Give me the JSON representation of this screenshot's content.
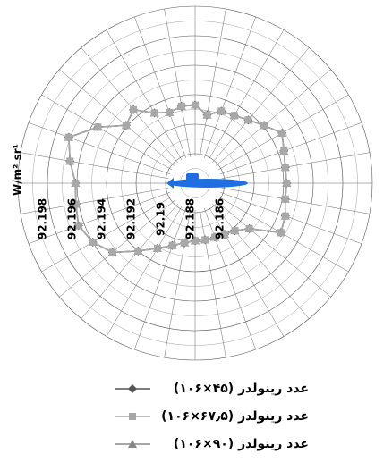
{
  "chart_data": {
    "type": "polar",
    "y_label": "W/m² sr¹",
    "theta": [
      0,
      10,
      20,
      30,
      40,
      50,
      60,
      70,
      80,
      90,
      100,
      110,
      120,
      130,
      140,
      150,
      160,
      170,
      180,
      190,
      200,
      210,
      220,
      230,
      240,
      250,
      260,
      270,
      280,
      290,
      300,
      310,
      320,
      330,
      340,
      350
    ],
    "rlim": [
      92.186,
      92.198
    ],
    "rticks": [
      92.186,
      92.188,
      92.19,
      92.192,
      92.194,
      92.196,
      92.198
    ],
    "series": [
      {
        "name": "عدد رینولدز (۴۵×۱۰۶)",
        "color": "#555555",
        "marker": "diamond",
        "values": [
          92.1922,
          92.1922,
          92.1924,
          92.1928,
          92.1921,
          92.1916,
          92.1913,
          92.1912,
          92.1907,
          92.1913,
          92.1913,
          92.1911,
          92.1915,
          92.1925,
          92.1921,
          92.1936,
          92.1951,
          92.1946,
          92.1941,
          92.1942,
          92.1944,
          92.194,
          92.1933,
          92.192,
          92.1911,
          92.1905,
          92.1901,
          92.1899,
          92.1899,
          92.1899,
          92.19,
          92.1902,
          92.1908,
          92.1927,
          92.1925,
          92.1922
        ]
      },
      {
        "name": "عدد رینولدز (۶۷٫۵×۱۰۶)",
        "color": "#a8a8a8",
        "marker": "square",
        "values": [
          92.1922,
          92.1922,
          92.1924,
          92.1928,
          92.1921,
          92.1916,
          92.1913,
          92.1912,
          92.1907,
          92.1913,
          92.1913,
          92.1911,
          92.1915,
          92.1925,
          92.1921,
          92.1936,
          92.1951,
          92.1946,
          92.1941,
          92.1942,
          92.1944,
          92.194,
          92.1933,
          92.192,
          92.1911,
          92.1905,
          92.1901,
          92.1899,
          92.1899,
          92.1899,
          92.19,
          92.1902,
          92.1908,
          92.1927,
          92.1925,
          92.1922
        ]
      },
      {
        "name": "عدد رینولدز (۹۰×۱۰۶)",
        "color": "#888888",
        "marker": "triangle",
        "values": [
          92.1922,
          92.1922,
          92.1924,
          92.1928,
          92.1921,
          92.1916,
          92.1913,
          92.1912,
          92.1907,
          92.1913,
          92.1913,
          92.1911,
          92.1915,
          92.1925,
          92.1921,
          92.1936,
          92.1951,
          92.1946,
          92.1941,
          92.1942,
          92.1944,
          92.194,
          92.1933,
          92.192,
          92.1911,
          92.1905,
          92.1901,
          92.1899,
          92.1899,
          92.1899,
          92.19,
          92.1902,
          92.1908,
          92.1927,
          92.1925,
          92.1922
        ]
      }
    ]
  }
}
